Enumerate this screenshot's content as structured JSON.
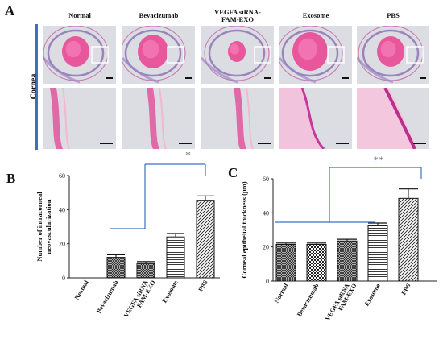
{
  "panel_a": {
    "letter": "A",
    "row_label": "Cornea",
    "columns": [
      "Normal",
      "Bevacizumab",
      "VEGFA siRNA-FAM-EXO",
      "Exosome",
      "PBS"
    ],
    "column_lines": [
      [
        "Normal"
      ],
      [
        "Bevacizumab"
      ],
      [
        "VEGFA siRNA-",
        "FAM-EXO"
      ],
      [
        "Exosome"
      ],
      [
        "PBS"
      ]
    ],
    "significance": "*"
  },
  "chart_data": [
    {
      "panel": "B",
      "type": "bar",
      "categories": [
        "Normal",
        "Bevacizumab",
        "VEGFA siRNA FAM-EXO",
        "Exosome",
        "PBS"
      ],
      "category_lines": [
        [
          "Normal"
        ],
        [
          "Bevacizumab"
        ],
        [
          "VEGFA siRNA",
          "FAM-EXO"
        ],
        [
          "Exosome"
        ],
        [
          "PBS"
        ]
      ],
      "values": [
        0,
        12,
        8.5,
        24,
        45.5
      ],
      "errors": [
        0,
        1.5,
        1,
        2,
        2.5
      ],
      "ylabel_lines": [
        "Number of intracorneal",
        "neovascularization"
      ],
      "yticks": [
        0,
        20,
        40,
        60
      ],
      "ylim": [
        0,
        60
      ],
      "significance": "*",
      "patterns": [
        "solid-gray",
        "dense-cross",
        "dense-cross",
        "horizontal",
        "diagonal"
      ]
    },
    {
      "panel": "C",
      "type": "bar",
      "categories": [
        "Normal",
        "Bevacizumab",
        "VEGFA siRNA FAM-EXO",
        "Exosome",
        "PBS"
      ],
      "category_lines": [
        [
          "Normal"
        ],
        [
          "Bevacizumab"
        ],
        [
          "VEGFA siRNA",
          "FAM-EXO"
        ],
        [
          "Exosome"
        ],
        [
          "PBS"
        ]
      ],
      "values": [
        21.5,
        21.5,
        23.5,
        32.5,
        48.5
      ],
      "errors": [
        0.8,
        0.8,
        1,
        1.5,
        5.5
      ],
      "ylabel": "Corneal epithelial thickness (μm)",
      "yticks": [
        0,
        20,
        40,
        60
      ],
      "ylim": [
        0,
        60
      ],
      "significance": "**",
      "patterns": [
        "dense-cross",
        "checker",
        "dense-cross",
        "horizontal",
        "diagonal"
      ]
    }
  ],
  "colors": {
    "row_bar": "#3d6fc4",
    "bracket": "#3d6fc4",
    "tissue_pink": "#e8579c",
    "background_gray": "#d8dbe0"
  }
}
